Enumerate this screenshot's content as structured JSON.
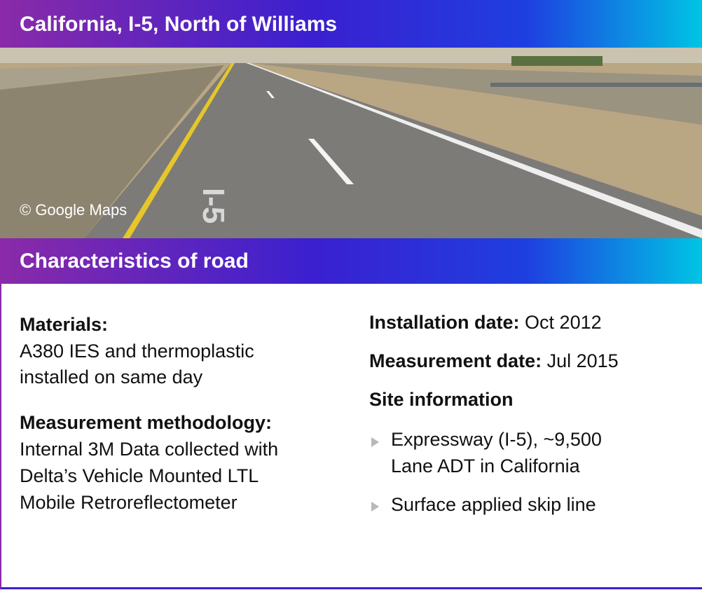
{
  "header": {
    "title": "California, I-5, North of Williams"
  },
  "image": {
    "caption": "© Google Maps"
  },
  "section": {
    "title": "Characteristics of road"
  },
  "left": {
    "materials": {
      "label": "Materials:",
      "lines": [
        "A380 IES and thermoplastic",
        "installed on same day"
      ]
    },
    "methodology": {
      "label": "Measurement methodology:",
      "lines": [
        "Internal 3M Data collected with",
        "Delta’s Vehicle Mounted LTL",
        "Mobile Retroreflectometer"
      ]
    }
  },
  "right": {
    "installation": {
      "label": "Installation date:",
      "value": "Oct 2012"
    },
    "measurement": {
      "label": "Measurement date:",
      "value": "Jul 2015"
    },
    "site": {
      "label": "Site information",
      "bullets": [
        [
          "Expressway (I-5), ~9,500",
          "Lane ADT in California"
        ],
        [
          "Surface applied skip line"
        ]
      ]
    }
  }
}
